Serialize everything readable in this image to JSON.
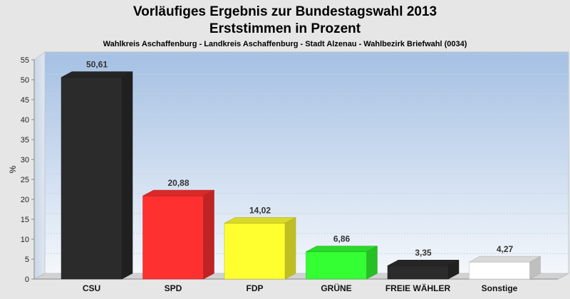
{
  "chart_data": {
    "type": "bar",
    "title": "Vorläufiges Ergebnis zur Bundestagswahl 2013",
    "subtitle": "Erststimmen in Prozent",
    "caption": "Wahlkreis Aschaffenburg - Landkreis Aschaffenburg - Stadt Alzenau - Wahlbezirk Briefwahl (0034)",
    "ylabel": "%",
    "xlabel": "",
    "ylim": [
      0,
      55
    ],
    "yticks": [
      0,
      5,
      10,
      15,
      20,
      25,
      30,
      35,
      40,
      45,
      50,
      55
    ],
    "grid": true,
    "categories": [
      "CSU",
      "SPD",
      "FDP",
      "GRÜNE",
      "FREIE WÄHLER",
      "Sonstige"
    ],
    "values": [
      50.61,
      20.88,
      14.02,
      6.86,
      3.35,
      4.27
    ],
    "value_labels": [
      "50,61",
      "20,88",
      "14,02",
      "6,86",
      "3,35",
      "4,27"
    ],
    "colors": [
      "#2b2b2b",
      "#ff3030",
      "#ffff30",
      "#33ff33",
      "#2b2b2b",
      "#ffffff"
    ]
  }
}
